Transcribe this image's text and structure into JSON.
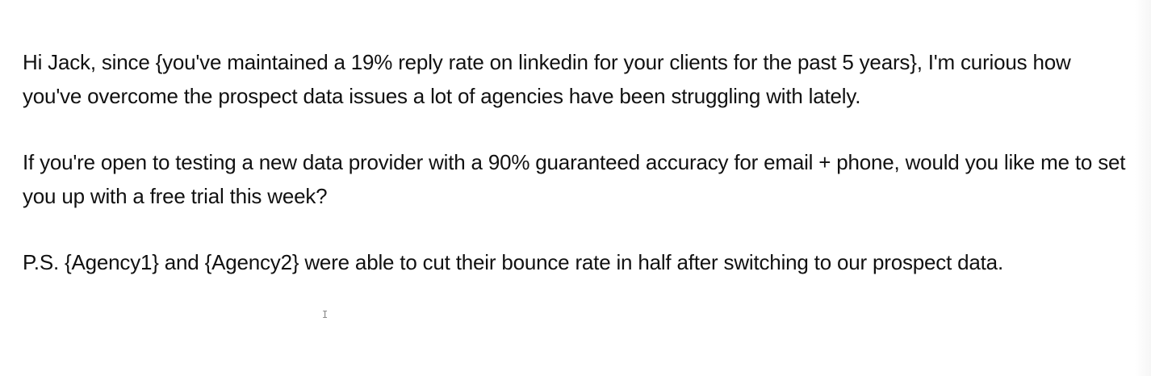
{
  "document": {
    "paragraphs": [
      "Hi Jack, since {you've maintained a 19% reply rate on linkedin for your clients for the past 5 years}, I'm curious how you've overcome the prospect data issues a lot of agencies have been struggling with lately.",
      "If you're open to testing a new data provider with a 90% guaranteed accuracy for email + phone, would you like me to set you up with a free trial this week?",
      "P.S. {Agency1} and {Agency2} were able to cut their bounce rate in half after switching to our prospect data."
    ]
  },
  "cursor": {
    "glyph": "I"
  }
}
